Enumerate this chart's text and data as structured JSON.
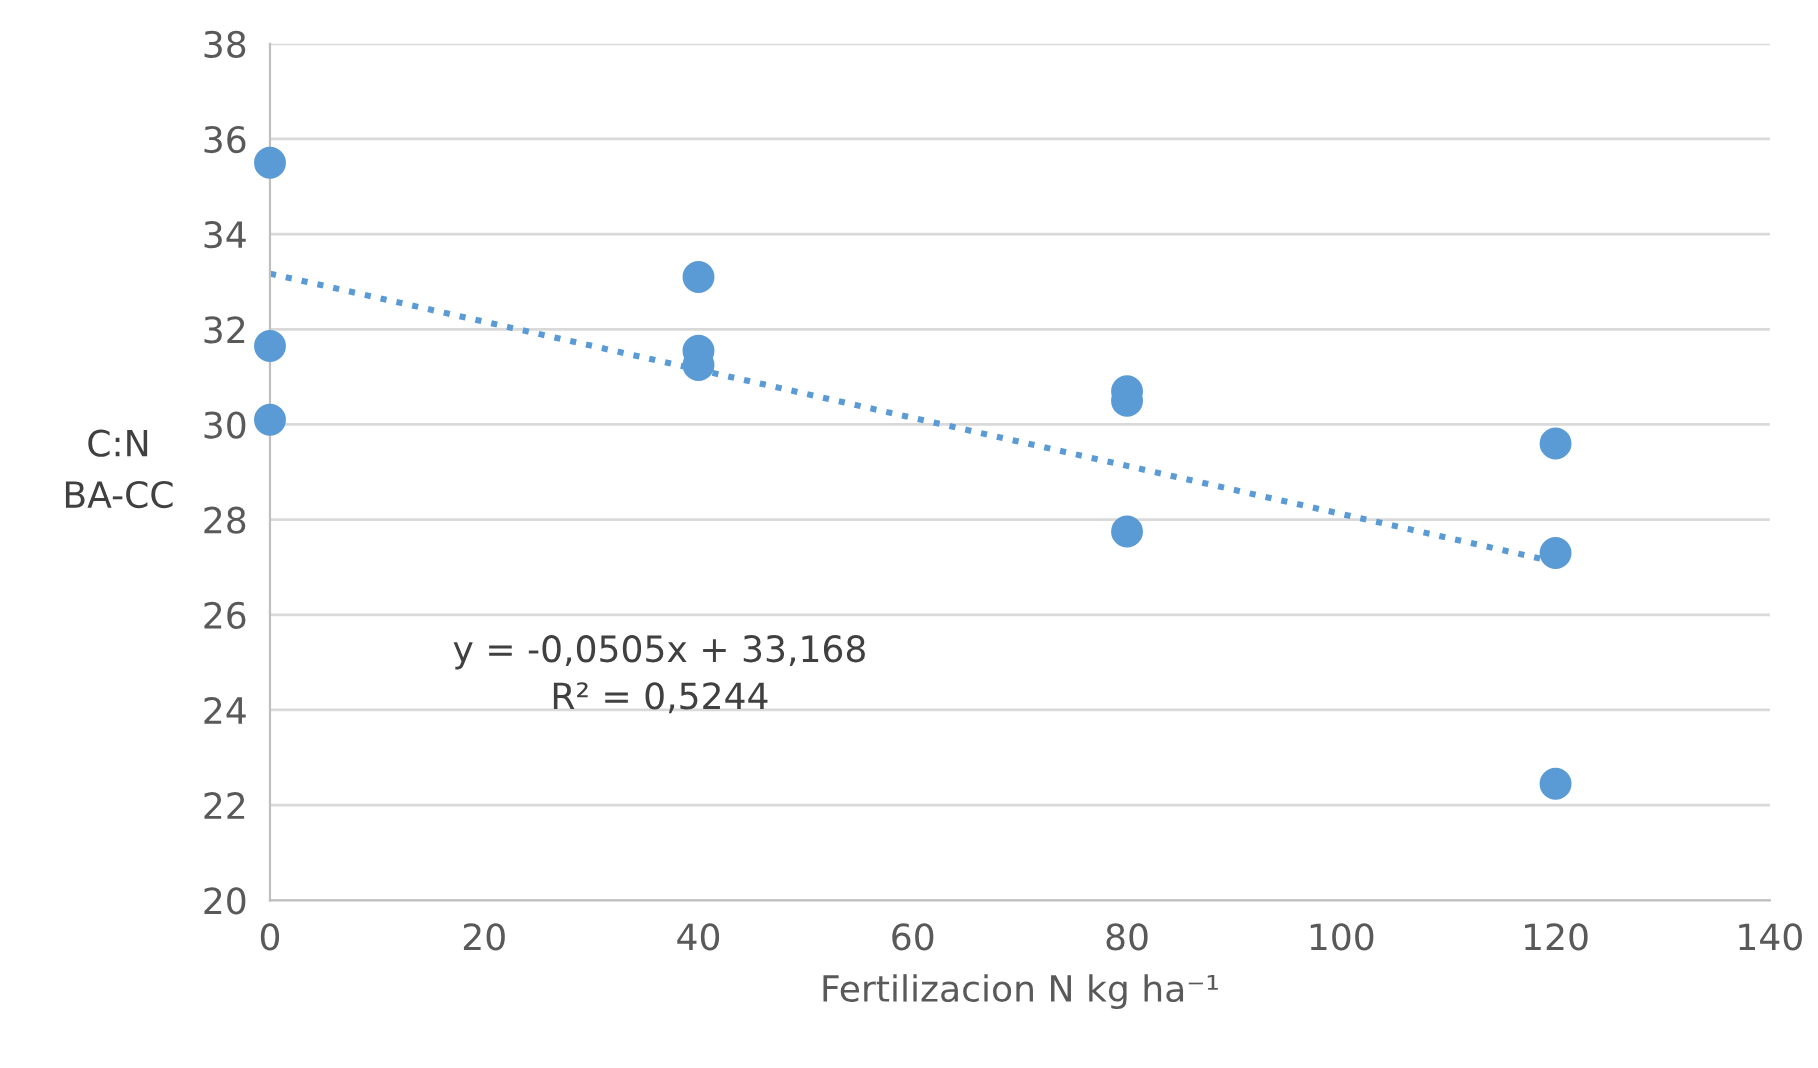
{
  "chart_data": {
    "type": "scatter",
    "xlabel": "Fertilizacion N kg ha⁻¹",
    "ylabel": "C:N\nBA-CC",
    "series": [
      {
        "color": "#5b9bd5",
        "marker": "circle",
        "x": [
          0,
          0,
          0,
          40,
          40,
          40,
          80,
          80,
          80,
          120,
          120,
          120
        ],
        "values": [
          35.5,
          31.65,
          30.1,
          33.1,
          31.55,
          31.25,
          30.7,
          30.5,
          27.75,
          29.6,
          27.3,
          22.45
        ]
      },
      {
        "type": "line",
        "color": "#5b9bd5",
        "line_style": "dotted",
        "marker": "none",
        "x": [
          0,
          120
        ],
        "values": [
          33.17,
          27.11
        ]
      }
    ],
    "annotations": [
      "y = -0,0505x + 33,168",
      "R² = 0,5244"
    ],
    "xlim": [
      0,
      140
    ],
    "xticks": [
      0,
      20,
      40,
      60,
      80,
      100,
      120,
      140
    ],
    "ylim": [
      20,
      38
    ],
    "yticks": [
      20,
      22,
      24,
      26,
      28,
      30,
      32,
      34,
      36,
      38
    ],
    "grid": "y",
    "legend": false
  }
}
